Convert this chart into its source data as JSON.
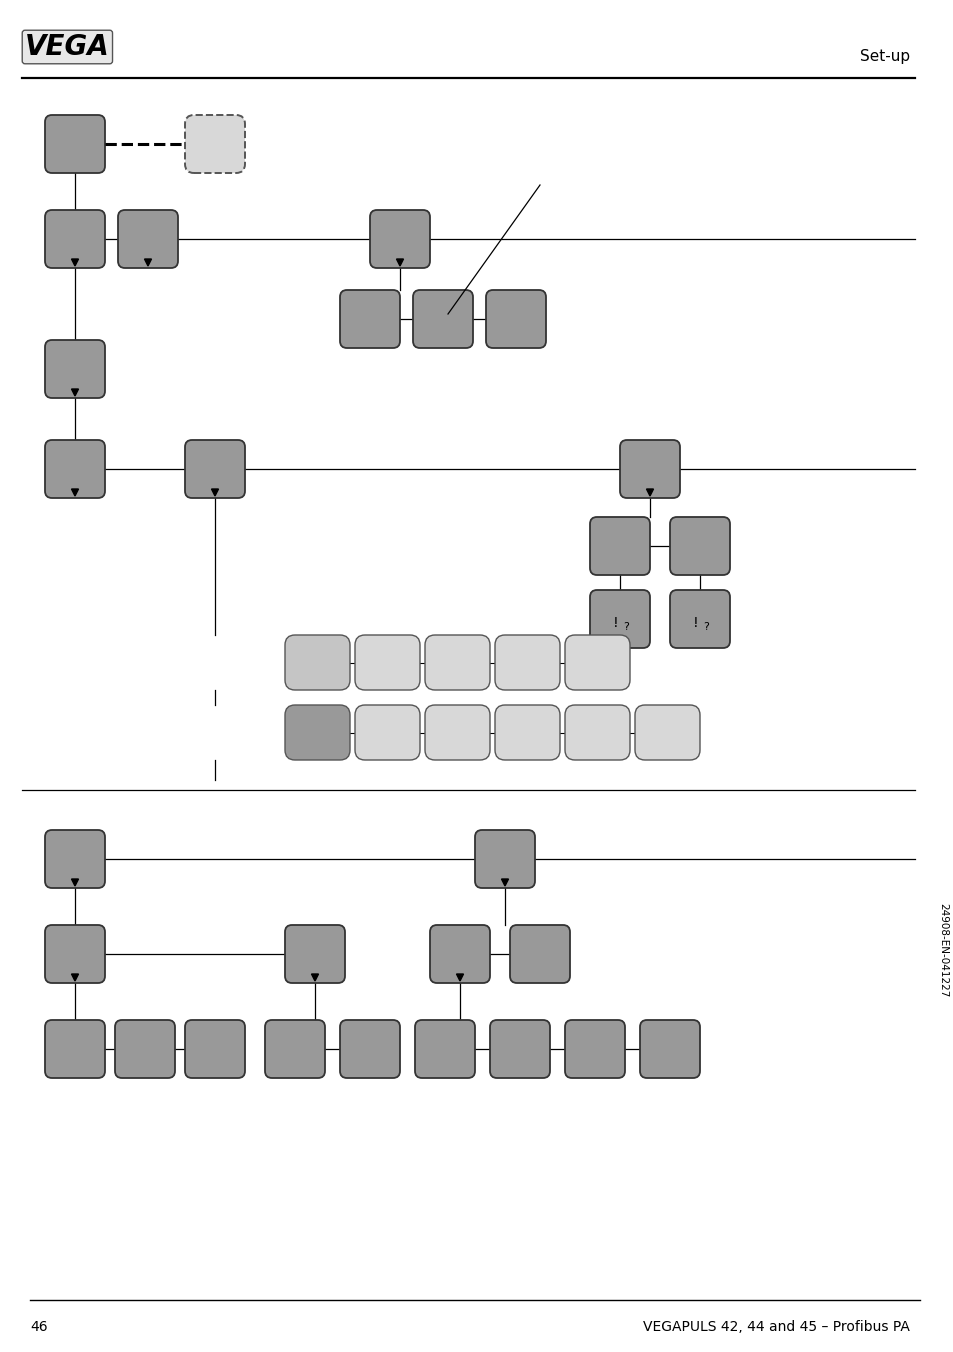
{
  "page_number": "46",
  "footer_text": "VEGAPULS 42, 44 and 45 – Profibus PA",
  "header_text": "Set-up",
  "bg_color": "#ffffff",
  "box_dark": "#999999",
  "box_light": "#cccccc",
  "box_dashed_fill": "#d8d8d8",
  "edge_dark": "#333333",
  "edge_light": "#555555",
  "line_color": "#000000",
  "side_text": "24908-EN-041227"
}
